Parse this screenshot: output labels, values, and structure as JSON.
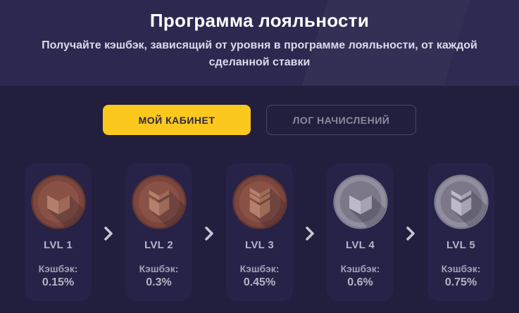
{
  "header": {
    "title": "Программа лояльности",
    "subtitle": "Получайте кэшбэк, зависящий от уровня в программе лояльности, от каждой\nсделанной ставки"
  },
  "tabs": {
    "my_cabinet": "МОЙ КАБИНЕТ",
    "accrual_log": "ЛОГ НАЧИСЛЕНИЙ"
  },
  "icons": {
    "next_level": "chevron-right-icon"
  },
  "levels": [
    {
      "label": "LVL 1",
      "cashback_label": "Кэшбэк:",
      "cashback_value": "0.15%",
      "medal": {
        "metal": "bronze",
        "stripes": 0,
        "icon": "bronze-medal-icon"
      }
    },
    {
      "label": "LVL 2",
      "cashback_label": "Кэшбэк:",
      "cashback_value": "0.3%",
      "medal": {
        "metal": "bronze",
        "stripes": 1,
        "icon": "bronze-medal-icon"
      }
    },
    {
      "label": "LVL 3",
      "cashback_label": "Кэшбэк:",
      "cashback_value": "0.45%",
      "medal": {
        "metal": "bronze",
        "stripes": 2,
        "icon": "bronze-medal-icon"
      }
    },
    {
      "label": "LVL 4",
      "cashback_label": "Кэшбэк:",
      "cashback_value": "0.6%",
      "medal": {
        "metal": "silver",
        "stripes": 0,
        "icon": "silver-medal-icon"
      }
    },
    {
      "label": "LVL 5",
      "cashback_label": "Кэшбэк:",
      "cashback_value": "0.75%",
      "medal": {
        "metal": "silver",
        "stripes": 1,
        "icon": "silver-medal-icon"
      }
    }
  ],
  "colors": {
    "accent_yellow": "#fbc81e",
    "header_bg": "#2c2850",
    "body_bg": "#221e3d",
    "card_bg": "#272248",
    "arrow": "#c9c6d3",
    "medal": {
      "bronze": {
        "edge": "#66382f",
        "ring": "#7b463d",
        "inner": "#8a5147",
        "icon_light": "#b47f6c",
        "icon_dark": "#9e6a58"
      },
      "silver": {
        "edge": "#7e7b8c",
        "ring": "#918e9f",
        "inner": "#7c7889",
        "icon_light": "#bcb9c8",
        "icon_dark": "#a7a3b4"
      }
    }
  }
}
